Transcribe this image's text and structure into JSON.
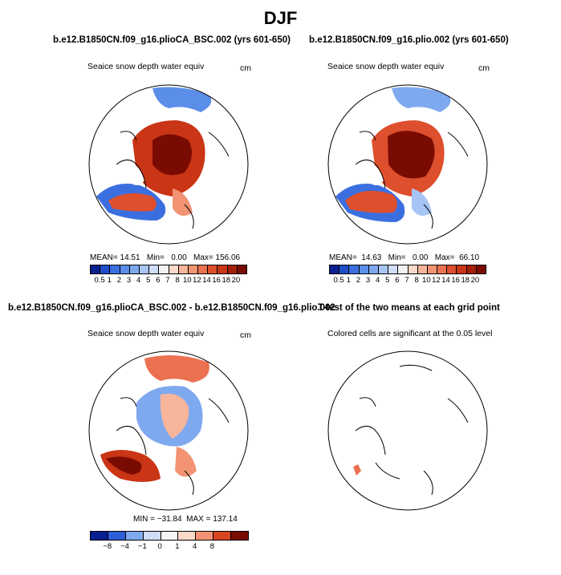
{
  "page": {
    "title": "DJF"
  },
  "panels": [
    {
      "case_title": "b.e12.B1850CN.f09_g16.plioCA_BSC.002 (yrs 601-650)",
      "var_title": "Seaice snow depth water equiv",
      "units": "cm",
      "stats": {
        "mean_label": "MEAN=",
        "mean": "14.51",
        "min_label": "Min=",
        "min": "0.00",
        "max_label": "Max=",
        "max": "156.06"
      }
    },
    {
      "case_title": "b.e12.B1850CN.f09_g16.plio.002 (yrs 601-650)",
      "var_title": "Seaice snow depth water equiv",
      "units": "cm",
      "stats": {
        "mean_label": "MEAN=",
        "mean": "14.63",
        "min_label": "Min=",
        "min": "0.00",
        "max_label": "Max=",
        "max": "66.10"
      }
    },
    {
      "case_title": "b.e12.B1850CN.f09_g16.plioCA_BSC.002 - b.e12.B1850CN.f09_g16.plio.002",
      "var_title": "Seaice snow depth water equiv",
      "units": "cm",
      "stats_text": "MIN = −31.84  MAX = 137.14"
    },
    {
      "case_title": "T-test of the two means at each grid point",
      "var_title": "Colored cells are significant at the 0.05 level"
    }
  ],
  "colorbars": {
    "absolute": {
      "ticks": [
        "0.5",
        "1",
        "2",
        "3",
        "4",
        "5",
        "6",
        "7",
        "8",
        "10",
        "12",
        "14",
        "16",
        "18",
        "20"
      ],
      "colors": [
        "#0a1f8f",
        "#1f4cc7",
        "#3b6fe0",
        "#5b8ee8",
        "#7fa9ef",
        "#a6c4f4",
        "#cfddf8",
        "#f2f2f2",
        "#fbd9c8",
        "#f7b69c",
        "#f29473",
        "#eb7150",
        "#de4f2d",
        "#c93515",
        "#a31e08",
        "#7a0b02"
      ]
    },
    "difference": {
      "ticks": [
        "−8",
        "−4",
        "−1",
        "0",
        "1",
        "4",
        "8"
      ],
      "colors": [
        "#0a1f8f",
        "#2f5fd6",
        "#7fa9ef",
        "#cfddf8",
        "#f6f6f6",
        "#fbd9c8",
        "#f29473",
        "#d84420",
        "#7a0b02"
      ]
    }
  },
  "chart_data": [
    {
      "type": "heatmap",
      "title": "Seaice snow depth water equiv",
      "case": "b.e12.B1850CN.f09_g16.plioCA_BSC.002 (yrs 601-650)",
      "units": "cm",
      "projection": "north polar stereographic",
      "mean": 14.51,
      "min": 0.0,
      "max": 156.06,
      "levels": [
        0.5,
        1,
        2,
        3,
        4,
        5,
        6,
        7,
        8,
        10,
        12,
        14,
        16,
        18,
        20
      ]
    },
    {
      "type": "heatmap",
      "title": "Seaice snow depth water equiv",
      "case": "b.e12.B1850CN.f09_g16.plio.002 (yrs 601-650)",
      "units": "cm",
      "projection": "north polar stereographic",
      "mean": 14.63,
      "min": 0.0,
      "max": 66.1,
      "levels": [
        0.5,
        1,
        2,
        3,
        4,
        5,
        6,
        7,
        8,
        10,
        12,
        14,
        16,
        18,
        20
      ]
    },
    {
      "type": "heatmap",
      "title": "Seaice snow depth water equiv",
      "case": "b.e12.B1850CN.f09_g16.plioCA_BSC.002 - b.e12.B1850CN.f09_g16.plio.002",
      "units": "cm",
      "projection": "north polar stereographic",
      "min": -31.84,
      "max": 137.14,
      "levels": [
        -8,
        -4,
        -1,
        0,
        1,
        4,
        8
      ]
    },
    {
      "type": "heatmap",
      "title": "T-test of the two means at each grid point",
      "subtitle": "Colored cells are significant at the 0.05 level",
      "projection": "north polar stereographic"
    }
  ]
}
